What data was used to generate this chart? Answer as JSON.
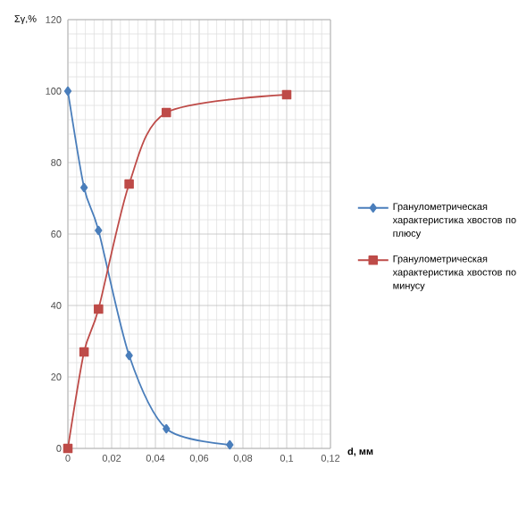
{
  "chart_data": {
    "type": "line",
    "xlabel": "d, мм",
    "ylabel": "Σγ,%",
    "series": [
      {
        "name": "Гранулометрическая характеристика хвостов по плюсу",
        "color": "#4a7ebb",
        "marker": "diamond",
        "x": [
          0,
          0.0074,
          0.014,
          0.028,
          0.045,
          0.074
        ],
        "values": [
          100,
          73,
          61,
          26,
          5.5,
          1
        ]
      },
      {
        "name": "Гранулометрическая характеристика хвостов по минусу",
        "color": "#be4b48",
        "marker": "square",
        "x": [
          0,
          0.0074,
          0.014,
          0.028,
          0.045,
          0.1
        ],
        "values": [
          0,
          27,
          39,
          74,
          94,
          99
        ]
      }
    ],
    "xlim": [
      0,
      0.12
    ],
    "ylim": [
      0,
      120
    ],
    "xticks": [
      0,
      {
        "value": 0.02,
        "label": "0,02"
      },
      {
        "value": 0.04,
        "label": "0,04"
      },
      {
        "value": 0.06,
        "label": "0,06"
      },
      {
        "value": 0.08,
        "label": "0,08"
      },
      {
        "value": 0.1,
        "label": "0,1"
      },
      {
        "value": 0.12,
        "label": "0,12"
      }
    ],
    "yticks": [
      0,
      20,
      40,
      60,
      80,
      100,
      120
    ],
    "grid": true,
    "legend": "right"
  }
}
